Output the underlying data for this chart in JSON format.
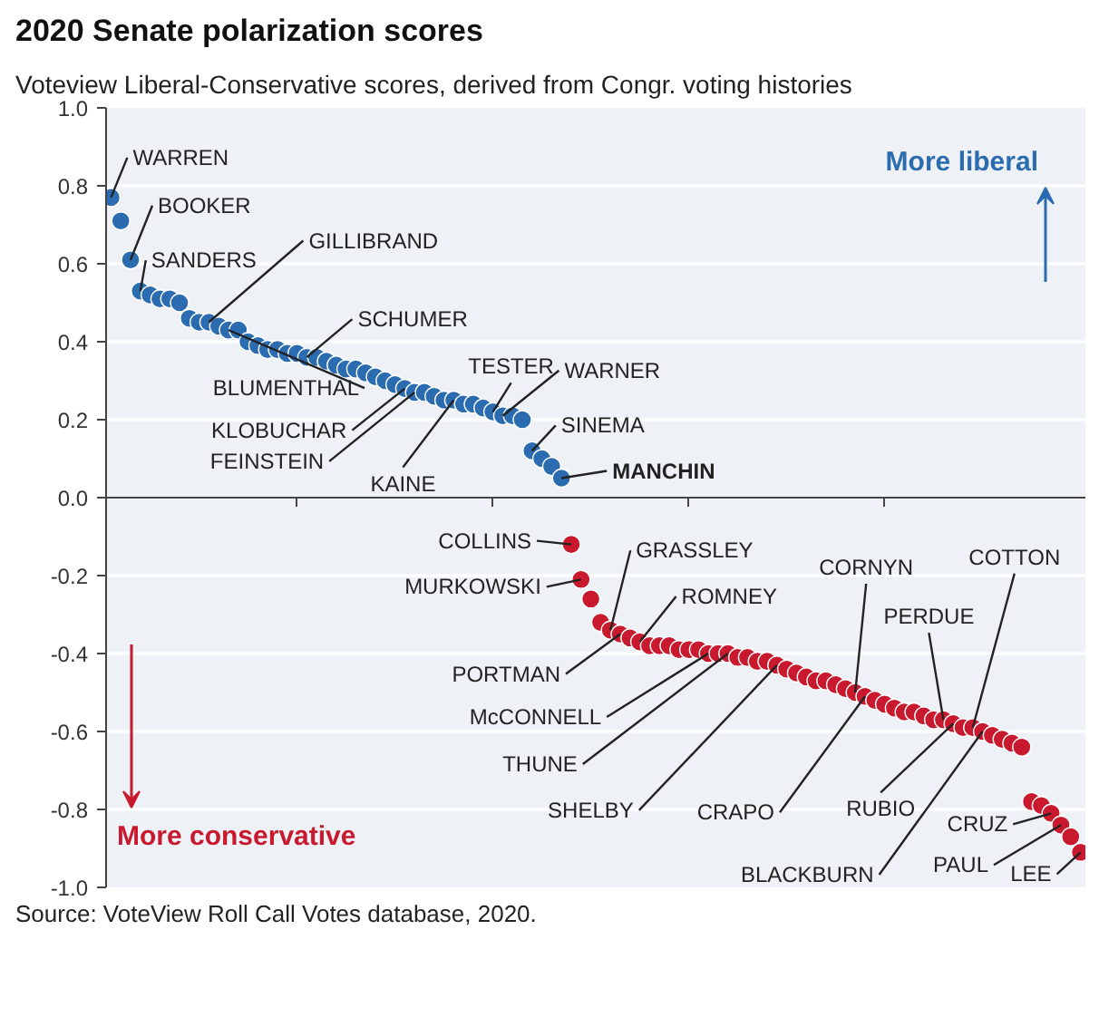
{
  "chart_data": {
    "type": "scatter",
    "title": "2020 Senate polarization scores",
    "subtitle": "Voteview Liberal-Conservative scores, derived from Congr. voting histories",
    "categories": [
      null,
      null,
      null,
      null,
      null,
      null,
      null,
      null,
      null,
      null,
      null,
      null,
      null,
      null,
      null,
      null,
      null,
      null,
      null,
      null,
      null,
      null,
      null,
      null,
      null,
      null,
      null,
      null,
      null,
      null,
      null,
      null,
      null,
      null,
      null,
      null,
      null,
      null,
      null,
      null,
      null,
      null,
      null,
      null,
      null,
      null,
      null,
      null,
      null,
      null,
      null,
      null,
      null,
      null,
      null,
      null,
      null,
      null,
      null,
      null,
      null,
      null,
      null,
      null,
      null,
      null,
      null,
      null,
      null,
      null,
      null,
      null,
      null,
      null,
      null,
      null,
      null,
      null,
      null,
      null,
      null,
      null,
      null,
      null,
      null,
      null,
      null,
      null,
      null,
      null,
      null,
      null,
      null,
      null,
      null,
      null,
      null,
      null,
      null,
      null
    ],
    "ylim": [
      -1,
      1
    ],
    "yticks": [
      {
        "value": 1,
        "label": "1.0"
      },
      {
        "value": 0.8,
        "label": "0.8"
      },
      {
        "value": 0.6,
        "label": "0.6"
      },
      {
        "value": 0.4,
        "label": "0.4"
      },
      {
        "value": 0.2,
        "label": "0.2"
      },
      {
        "value": 0,
        "label": "0.0"
      },
      {
        "value": -0.2,
        "label": "-0.2"
      },
      {
        "value": -0.4,
        "label": "-0.4"
      },
      {
        "value": -0.6,
        "label": "-0.6"
      },
      {
        "value": -0.8,
        "label": "-0.8"
      },
      {
        "value": -1,
        "label": "-1.0"
      }
    ],
    "grid": "y",
    "marker": "circle",
    "series": [
      {
        "color": "#2b6cb0",
        "values": [
          0.77,
          0.71,
          0.61,
          0.53,
          0.52,
          0.51,
          0.51,
          0.5,
          0.46,
          0.45,
          0.45,
          0.44,
          0.43,
          0.43,
          0.4,
          0.39,
          0.38,
          0.38,
          0.37,
          0.37,
          0.36,
          0.36,
          0.35,
          0.34,
          0.33,
          0.33,
          0.32,
          0.31,
          0.3,
          0.29,
          0.28,
          0.27,
          0.27,
          0.26,
          0.25,
          0.25,
          0.24,
          0.24,
          0.23,
          0.22,
          0.21,
          0.21,
          0.2,
          0.12,
          0.1,
          0.08,
          0.05,
          null,
          null,
          null,
          null,
          null,
          null,
          null,
          null,
          null,
          null,
          null,
          null,
          null,
          null,
          null,
          null,
          null,
          null,
          null,
          null,
          null,
          null,
          null,
          null,
          null,
          null,
          null,
          null,
          null,
          null,
          null,
          null,
          null,
          null,
          null,
          null,
          null,
          null,
          null,
          null,
          null,
          null,
          null,
          null,
          null,
          null,
          null,
          null,
          null,
          null,
          null,
          null,
          null
        ],
        "value_labels": [
          "WARREN",
          null,
          "BOOKER",
          "SANDERS",
          null,
          null,
          null,
          null,
          null,
          null,
          "GILLIBRAND",
          null,
          "BLUMENTHAL",
          null,
          null,
          null,
          null,
          null,
          null,
          null,
          "SCHUMER",
          null,
          null,
          null,
          null,
          null,
          null,
          null,
          null,
          null,
          "KLOBUCHAR",
          "FEINSTEIN",
          null,
          null,
          null,
          "KAINE",
          null,
          null,
          null,
          "TESTER",
          "WARNER",
          null,
          null,
          "SINEMA",
          null,
          null,
          "MANCHIN",
          null,
          null,
          null,
          null,
          null,
          null,
          null,
          null,
          null,
          null,
          null,
          null,
          null,
          null,
          null,
          null,
          null,
          null,
          null,
          null,
          null,
          null,
          null,
          null,
          null,
          null,
          null,
          null,
          null,
          null,
          null,
          null,
          null,
          null,
          null,
          null,
          null,
          null,
          null,
          null,
          null,
          null,
          null,
          null,
          null,
          null,
          null,
          null,
          null,
          null,
          null,
          null,
          null
        ]
      },
      {
        "color": "#c8192e",
        "values": [
          null,
          null,
          null,
          null,
          null,
          null,
          null,
          null,
          null,
          null,
          null,
          null,
          null,
          null,
          null,
          null,
          null,
          null,
          null,
          null,
          null,
          null,
          null,
          null,
          null,
          null,
          null,
          null,
          null,
          null,
          null,
          null,
          null,
          null,
          null,
          null,
          null,
          null,
          null,
          null,
          null,
          null,
          null,
          null,
          null,
          null,
          null,
          -0.12,
          -0.21,
          -0.26,
          -0.32,
          -0.34,
          -0.35,
          -0.36,
          -0.37,
          -0.38,
          -0.38,
          -0.38,
          -0.39,
          -0.39,
          -0.39,
          -0.4,
          -0.4,
          -0.4,
          -0.41,
          -0.41,
          -0.42,
          -0.42,
          -0.43,
          -0.44,
          -0.45,
          -0.46,
          -0.47,
          -0.47,
          -0.48,
          -0.49,
          -0.5,
          -0.51,
          -0.52,
          -0.53,
          -0.54,
          -0.55,
          -0.55,
          -0.56,
          -0.57,
          -0.57,
          -0.58,
          -0.59,
          -0.59,
          -0.6,
          -0.61,
          -0.62,
          -0.63,
          -0.64,
          -0.78,
          -0.79,
          -0.81,
          -0.84,
          -0.87,
          -0.91
        ],
        "value_labels": [
          null,
          null,
          null,
          null,
          null,
          null,
          null,
          null,
          null,
          null,
          null,
          null,
          null,
          null,
          null,
          null,
          null,
          null,
          null,
          null,
          null,
          null,
          null,
          null,
          null,
          null,
          null,
          null,
          null,
          null,
          null,
          null,
          null,
          null,
          null,
          null,
          null,
          null,
          null,
          null,
          null,
          null,
          null,
          null,
          null,
          null,
          null,
          "COLLINS",
          "MURKOWSKI",
          null,
          null,
          "GRASSLEY",
          "PORTMAN",
          null,
          "ROMNEY",
          null,
          null,
          null,
          null,
          null,
          null,
          "McCONNELL",
          null,
          "THUNE",
          null,
          null,
          null,
          null,
          "SHELBY",
          null,
          null,
          null,
          null,
          null,
          null,
          null,
          "CORNYN",
          "CRAPO",
          null,
          null,
          null,
          null,
          null,
          null,
          null,
          "PERDUE",
          "RUBIO",
          null,
          "COTTON",
          "BLACKBURN",
          null,
          null,
          null,
          null,
          null,
          null,
          "CRUZ",
          "PAUL",
          null,
          "LEE"
        ]
      }
    ],
    "annotations": [
      "More liberal",
      "More conservative",
      "Source: VoteView Roll Call Votes database, 2020."
    ]
  }
}
